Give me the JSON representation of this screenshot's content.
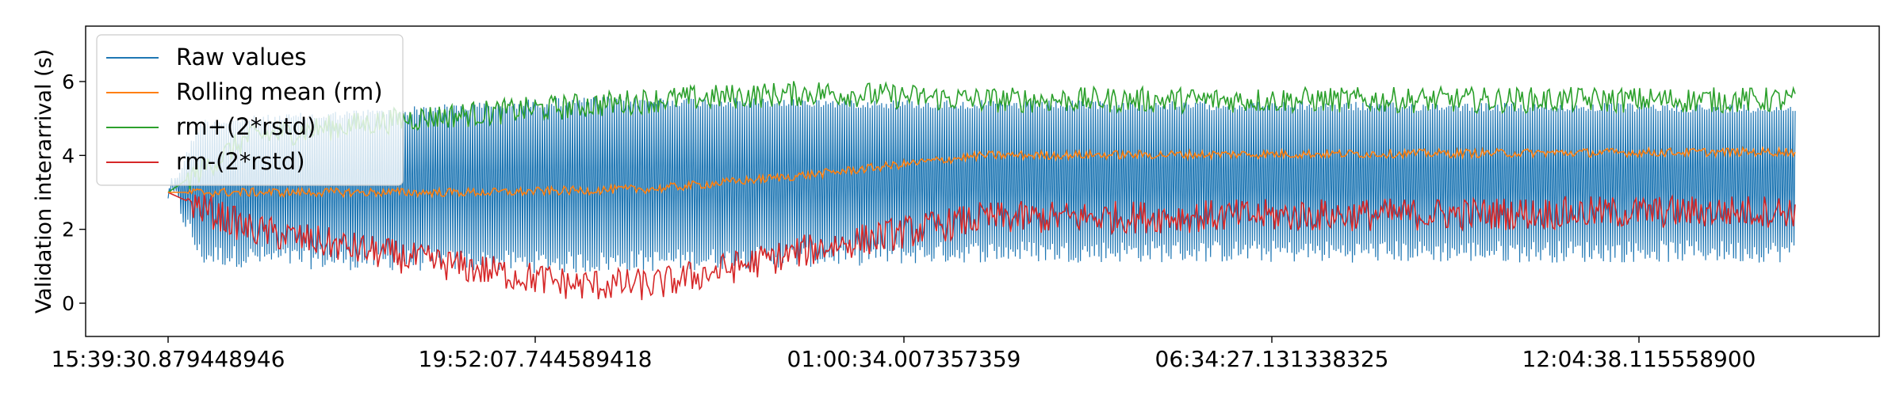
{
  "chart_data": {
    "type": "line",
    "title": "",
    "xlabel": "",
    "ylabel": "Validation interarrival (s)",
    "ylim": [
      -0.9,
      7.5
    ],
    "y_ticks": [
      0,
      2,
      4,
      6
    ],
    "x_ticks": [
      "15:39:30.879448946",
      "19:52:07.744589418",
      "01:00:34.007357359",
      "06:34:27.131338325",
      "12:04:38.115558900"
    ],
    "grid": false,
    "legend_position": "top-left",
    "series": [
      {
        "name": "Raw values",
        "color": "#1f77b4",
        "x": [
          0,
          0.02,
          0.1,
          0.25,
          0.5,
          1.0
        ],
        "mean": [
          3.0,
          3.0,
          3.0,
          3.2,
          4.0,
          4.0
        ],
        "low": [
          3.0,
          1.0,
          0.9,
          0.8,
          1.1,
          1.1
        ],
        "high": [
          3.0,
          5.0,
          5.2,
          5.6,
          5.5,
          5.4
        ]
      },
      {
        "name": "Rolling mean (rm)",
        "color": "#ff7f0e",
        "x": [
          0,
          0.1,
          0.2,
          0.3,
          0.4,
          0.5,
          1.0
        ],
        "values": [
          3.0,
          3.0,
          3.0,
          3.1,
          3.5,
          4.0,
          4.1
        ]
      },
      {
        "name": "rm+(2*rstd)",
        "color": "#2ca02c",
        "x": [
          0,
          0.05,
          0.15,
          0.3,
          0.4,
          0.5,
          1.0
        ],
        "values": [
          3.0,
          4.5,
          5.0,
          5.5,
          5.7,
          5.5,
          5.5
        ]
      },
      {
        "name": "rm-(2*rstd)",
        "color": "#d62728",
        "x": [
          0,
          0.05,
          0.15,
          0.25,
          0.3,
          0.4,
          0.5,
          1.0
        ],
        "values": [
          3.0,
          2.0,
          1.2,
          0.5,
          0.5,
          1.5,
          2.3,
          2.5
        ]
      }
    ]
  }
}
